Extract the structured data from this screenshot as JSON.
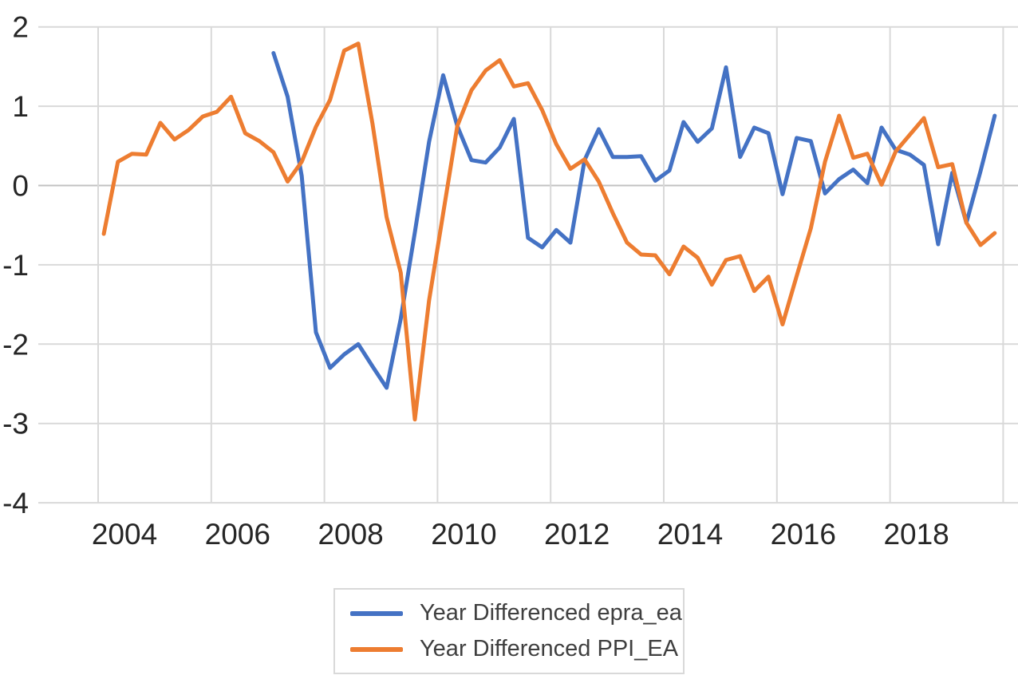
{
  "chart_data": {
    "type": "line",
    "title": "",
    "xlabel": "",
    "ylabel": "",
    "grid": true,
    "legend_position": "bottom-center",
    "x_axis": {
      "tick_labels": [
        "2004",
        "2006",
        "2008",
        "2010",
        "2012",
        "2014",
        "2016",
        "2018"
      ],
      "tick_years": [
        2004,
        2006,
        2008,
        2010,
        2012,
        2014,
        2016,
        2018
      ],
      "gridline_years": [
        2004,
        2006,
        2008,
        2010,
        2012,
        2014,
        2016,
        2018,
        2020
      ],
      "range_years": [
        2002.9,
        2020.3
      ]
    },
    "y_axis": {
      "tick_labels": [
        "2",
        "1",
        "0",
        "-1",
        "-2",
        "-3",
        "-4"
      ],
      "tick_values": [
        2,
        1,
        0,
        -1,
        -2,
        -3,
        -4
      ],
      "range": [
        -4.4,
        2.15
      ]
    },
    "series": [
      {
        "name": "Year Differenced epra_ea",
        "color": "#4472C4",
        "x_start": 2007.1,
        "x_step": 0.25,
        "values": [
          1.67,
          1.12,
          0.12,
          -1.85,
          -2.3,
          -2.13,
          -2.0,
          -2.28,
          -2.55,
          -1.68,
          -0.59,
          0.55,
          1.39,
          0.75,
          0.32,
          0.29,
          0.48,
          0.84,
          -0.66,
          -0.78,
          -0.56,
          -0.72,
          0.32,
          0.71,
          0.36,
          0.36,
          0.37,
          0.06,
          0.19,
          0.8,
          0.55,
          0.72,
          1.49,
          0.36,
          0.73,
          0.66,
          -0.11,
          0.6,
          0.56,
          -0.1,
          0.08,
          0.2,
          0.03,
          0.73,
          0.45,
          0.39,
          0.26,
          -0.74,
          0.16,
          -0.47,
          0.18,
          0.88
        ]
      },
      {
        "name": "Year Differenced PPI_EA",
        "color": "#ED7D31",
        "x_start": 2004.1,
        "x_step": 0.25,
        "values": [
          -0.61,
          0.3,
          0.4,
          0.39,
          0.79,
          0.58,
          0.7,
          0.87,
          0.93,
          1.12,
          0.66,
          0.56,
          0.42,
          0.05,
          0.3,
          0.74,
          1.08,
          1.7,
          1.79,
          0.78,
          -0.4,
          -1.1,
          -2.95,
          -1.45,
          -0.35,
          0.75,
          1.2,
          1.45,
          1.58,
          1.25,
          1.29,
          0.95,
          0.52,
          0.21,
          0.33,
          0.05,
          -0.35,
          -0.72,
          -0.87,
          -0.88,
          -1.12,
          -0.77,
          -0.91,
          -1.25,
          -0.94,
          -0.89,
          -1.33,
          -1.15,
          -1.75,
          -1.14,
          -0.54,
          0.3,
          0.88,
          0.35,
          0.4,
          0.01,
          0.43,
          0.64,
          0.85,
          0.23,
          0.27,
          -0.47,
          -0.75,
          -0.6
        ]
      }
    ],
    "colors": {
      "gridline": "#d9d9d9",
      "zero_line": "#c2c2c2",
      "tick_text": "#262626",
      "legend_text": "#3f3f3f",
      "legend_border": "#d9d9d9",
      "background": "#ffffff"
    }
  }
}
